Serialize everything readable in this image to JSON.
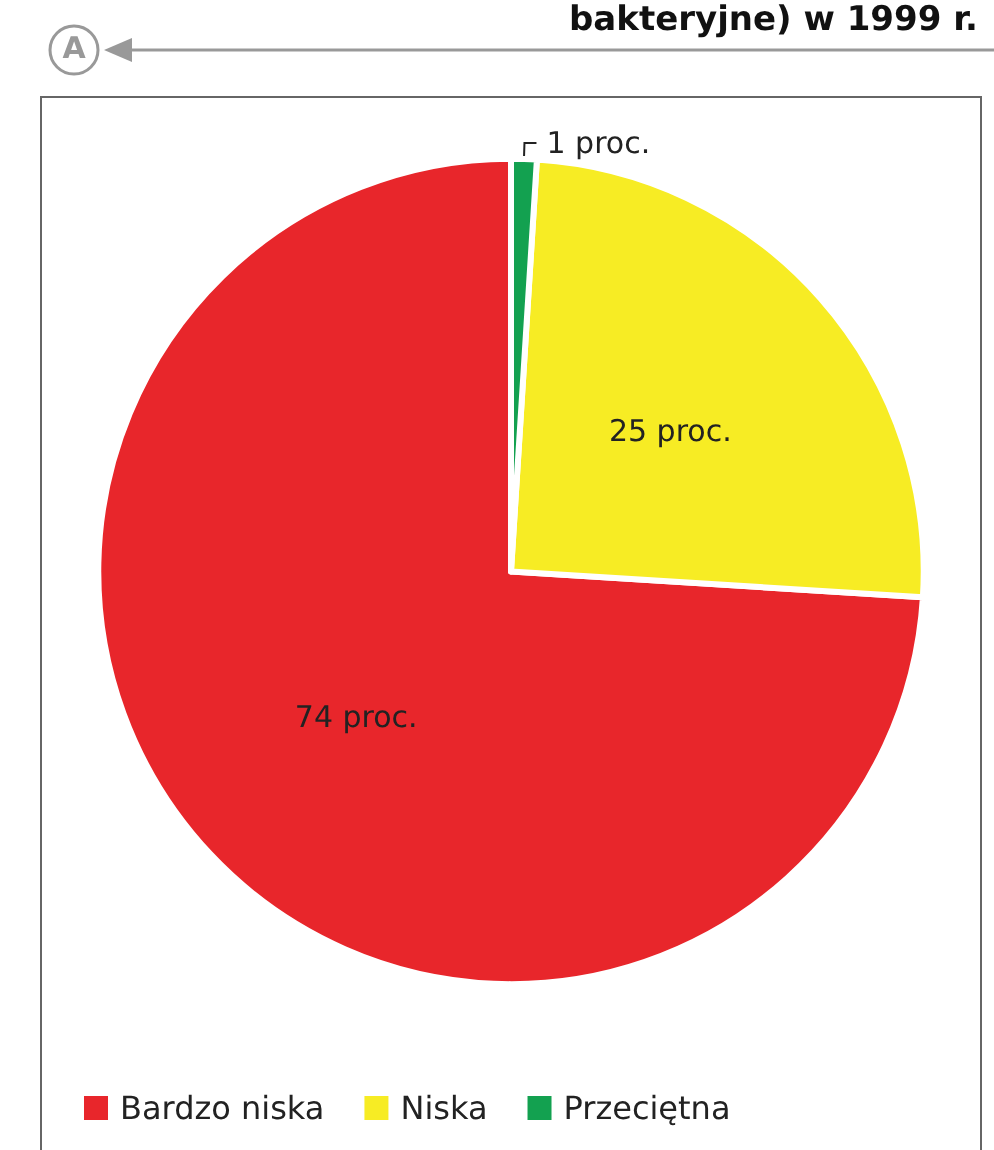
{
  "chart_data": {
    "type": "pie",
    "title": "bakteryjne) w 1999 r.",
    "categories": [
      "Bardzo niska",
      "Niska",
      "Przeciętna"
    ],
    "values": [
      74,
      25,
      1
    ],
    "colors": [
      "#e8262b",
      "#f7ec24",
      "#13a150"
    ],
    "value_labels": [
      "74 proc.",
      "25 proc.",
      "1 proc."
    ],
    "annotations": [
      "A"
    ],
    "legend": "bottom left"
  }
}
